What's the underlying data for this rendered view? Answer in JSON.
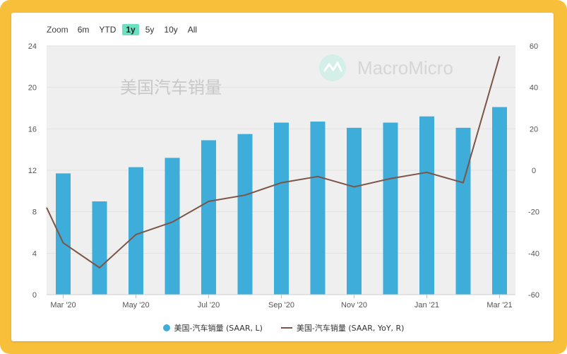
{
  "range_selector": {
    "label": "Zoom",
    "buttons": [
      "6m",
      "YTD",
      "1y",
      "5y",
      "10y",
      "All"
    ],
    "selected": "1y"
  },
  "watermark": {
    "chart_title": "美国汽车销量",
    "brand": "MacroMicro"
  },
  "colors": {
    "bars": "#3eadd9",
    "line": "#7a5548",
    "active_range": "#6ce0c0",
    "frame": "#f7bf3a"
  },
  "chart_data": {
    "type": "bar",
    "title": "美国汽车销量",
    "x_tick_labels": [
      "Mar '20",
      "May '20",
      "Jul '20",
      "Sep '20",
      "Nov '20",
      "Jan '21",
      "Mar '21"
    ],
    "categories": [
      "Mar '20",
      "Apr '20",
      "May '20",
      "Jun '20",
      "Jul '20",
      "Aug '20",
      "Sep '20",
      "Oct '20",
      "Nov '20",
      "Dec '20",
      "Jan '21",
      "Feb '21",
      "Mar '21"
    ],
    "left_axis": {
      "ylim": [
        0,
        24
      ],
      "ticks": [
        "0",
        "4",
        "8",
        "12",
        "16",
        "20",
        "24"
      ]
    },
    "right_axis": {
      "ylim": [
        -60,
        60
      ],
      "ticks": [
        "-60",
        "-40",
        "-20",
        "0",
        "20",
        "40",
        "60"
      ]
    },
    "grid": true,
    "legend_position": "bottom-center",
    "series": [
      {
        "name": "美国-汽车销量 (SAAR, L)",
        "type": "bar",
        "axis": "left",
        "values": [
          11.7,
          9.0,
          12.3,
          13.2,
          14.9,
          15.5,
          16.6,
          16.7,
          16.1,
          16.6,
          17.2,
          16.1,
          18.1
        ]
      },
      {
        "name": "美国-汽车销量 (SAAR, YoY, R)",
        "type": "line",
        "axis": "right",
        "start_value": -18,
        "values": [
          -35,
          -47,
          -31,
          -25,
          -15,
          -12,
          -6,
          -3,
          -8,
          -4,
          -1,
          -6,
          55
        ]
      }
    ]
  }
}
